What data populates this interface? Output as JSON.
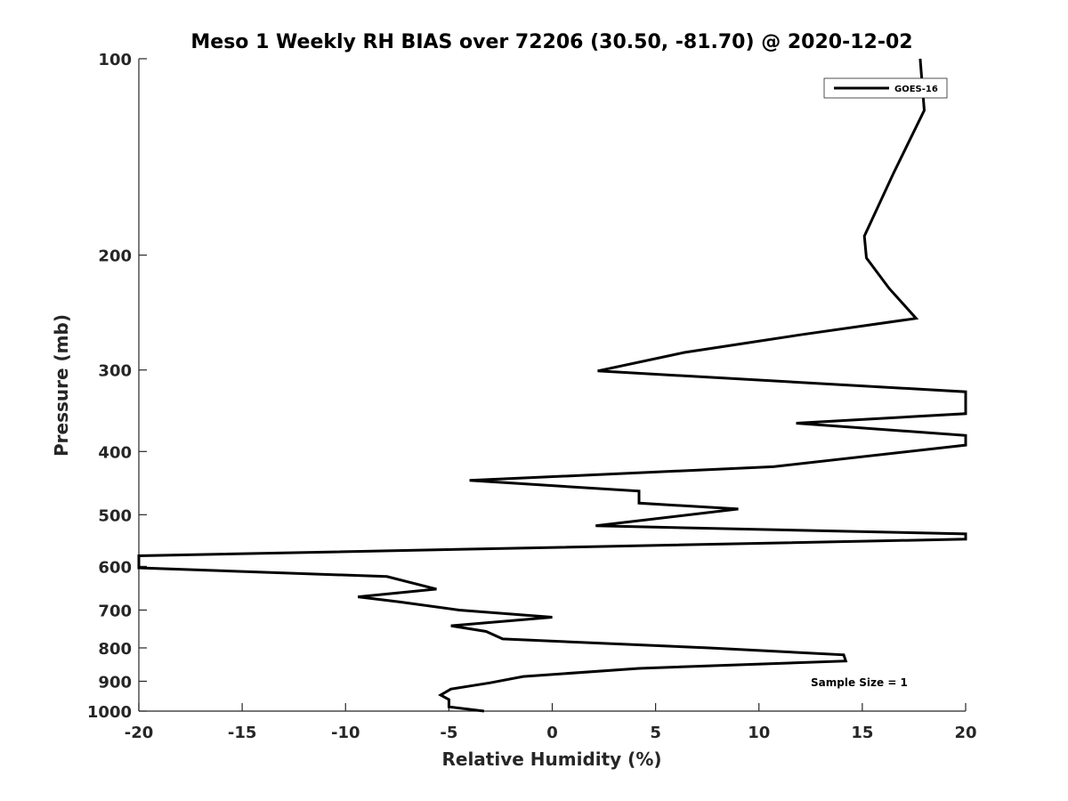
{
  "chart_data": {
    "type": "line",
    "title": "Meso 1 Weekly RH BIAS over 72206 (30.50, -81.70) @ 2020-12-02",
    "xlabel": "Relative Humidity (%)",
    "ylabel": "Pressure (mb)",
    "xlim": [
      -20,
      20
    ],
    "ylim": [
      100,
      1000
    ],
    "y_scale": "log",
    "y_reversed": true,
    "x_ticks": [
      "-20",
      "-15",
      "-10",
      "-5",
      "0",
      "5",
      "10",
      "15",
      "20"
    ],
    "y_ticks": [
      "100",
      "200",
      "300",
      "400",
      "500",
      "600",
      "700",
      "800",
      "900",
      "1000"
    ],
    "grid": false,
    "legend": {
      "position": "top-right",
      "entries": [
        "GOES-16"
      ]
    },
    "annotation": "Sample Size = 1",
    "series": [
      {
        "name": "GOES-16",
        "color": "#000000",
        "points": [
          [
            17.8,
            100
          ],
          [
            18.0,
            120
          ],
          [
            16.5,
            150
          ],
          [
            15.1,
            187
          ],
          [
            15.2,
            202
          ],
          [
            16.3,
            225
          ],
          [
            17.6,
            250
          ],
          [
            12.0,
            265
          ],
          [
            6.4,
            282
          ],
          [
            2.2,
            301
          ],
          [
            20.0,
            324
          ],
          [
            20.0,
            350
          ],
          [
            11.8,
            362
          ],
          [
            20.0,
            378
          ],
          [
            20.0,
            391
          ],
          [
            10.7,
            422
          ],
          [
            -4.0,
            443
          ],
          [
            4.2,
            460
          ],
          [
            4.2,
            480
          ],
          [
            9.0,
            490
          ],
          [
            2.1,
            520
          ],
          [
            20.0,
            535
          ],
          [
            20.0,
            545
          ],
          [
            -20.0,
            578
          ],
          [
            -20.0,
            603
          ],
          [
            -8.0,
            622
          ],
          [
            -5.6,
            650
          ],
          [
            -9.4,
            668
          ],
          [
            -7.4,
            680
          ],
          [
            -4.5,
            700
          ],
          [
            0.0,
            718
          ],
          [
            -4.9,
            740
          ],
          [
            -3.2,
            755
          ],
          [
            -2.4,
            775
          ],
          [
            7.6,
            800
          ],
          [
            14.1,
            820
          ],
          [
            14.2,
            838
          ],
          [
            4.2,
            860
          ],
          [
            -1.4,
            885
          ],
          [
            -3.0,
            905
          ],
          [
            -4.9,
            925
          ],
          [
            -5.4,
            945
          ],
          [
            -5.0,
            960
          ],
          [
            -5.0,
            985
          ],
          [
            -3.3,
            1000
          ]
        ]
      }
    ]
  }
}
